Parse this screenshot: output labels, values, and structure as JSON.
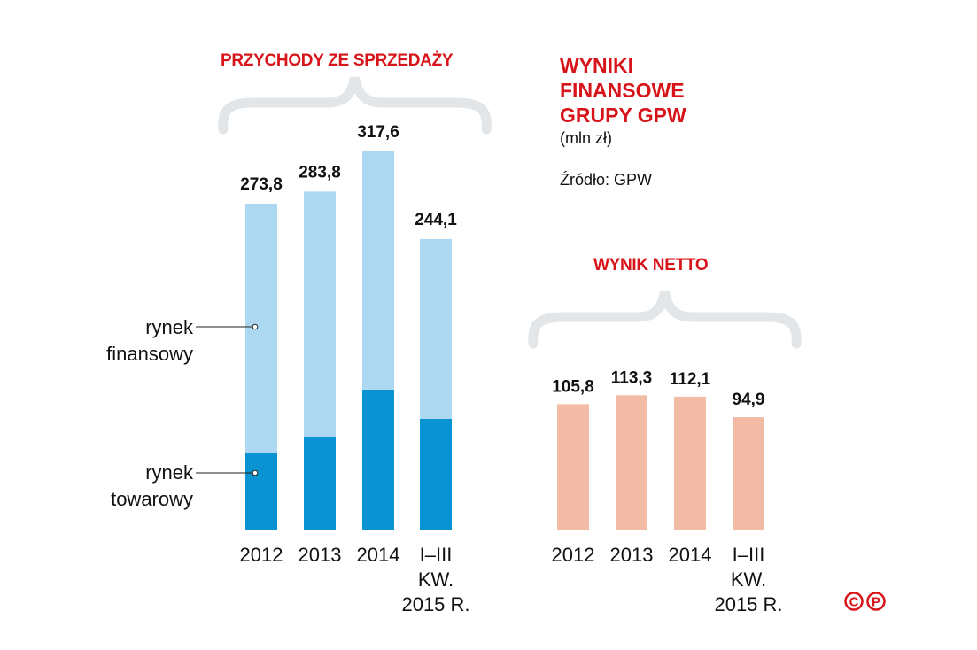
{
  "title": {
    "lines": [
      "WYNIKI",
      "FINANSOWE",
      "GRUPY GPW"
    ],
    "unit": "(mln zł)",
    "source": "Źródło: GPW"
  },
  "colors": {
    "accent": "#d8141b",
    "financial": "#acd8f2",
    "commodity": "#0a93d3",
    "net": "#f1bba6",
    "brace": "#e3e6e8"
  },
  "logo": "©℗",
  "chart_data": [
    {
      "type": "bar",
      "stacked": true,
      "title": "PRZYCHODY ZE SPRZEDAŻY",
      "categories": [
        "2012",
        "2013",
        "2014",
        "I–III KW. 2015 R."
      ],
      "category_lines": [
        [
          "2012"
        ],
        [
          "2013"
        ],
        [
          "2014"
        ],
        [
          "I–III",
          "KW.",
          "2015 R."
        ]
      ],
      "totals": [
        "273,8",
        "283,8",
        "317,6",
        "244,1"
      ],
      "series": [
        {
          "name": "rynek towarowy",
          "label_lines": [
            "rynek",
            "towarowy"
          ],
          "values": [
            65.3,
            78.6,
            118.0,
            93.5
          ]
        },
        {
          "name": "rynek finansowy",
          "label_lines": [
            "rynek",
            "finansowy"
          ],
          "values": [
            208.5,
            205.2,
            199.6,
            150.6
          ]
        }
      ],
      "ylim": [
        0,
        330
      ]
    },
    {
      "type": "bar",
      "title": "WYNIK NETTO",
      "categories": [
        "2012",
        "2013",
        "2014",
        "I–III KW. 2015 R."
      ],
      "category_lines": [
        [
          "2012"
        ],
        [
          "2013"
        ],
        [
          "2014"
        ],
        [
          "I–III",
          "KW.",
          "2015 R."
        ]
      ],
      "values": [
        105.8,
        113.3,
        112.1,
        94.9
      ],
      "labels": [
        "105,8",
        "113,3",
        "112,1",
        "94,9"
      ],
      "ylim": [
        0,
        330
      ]
    }
  ]
}
